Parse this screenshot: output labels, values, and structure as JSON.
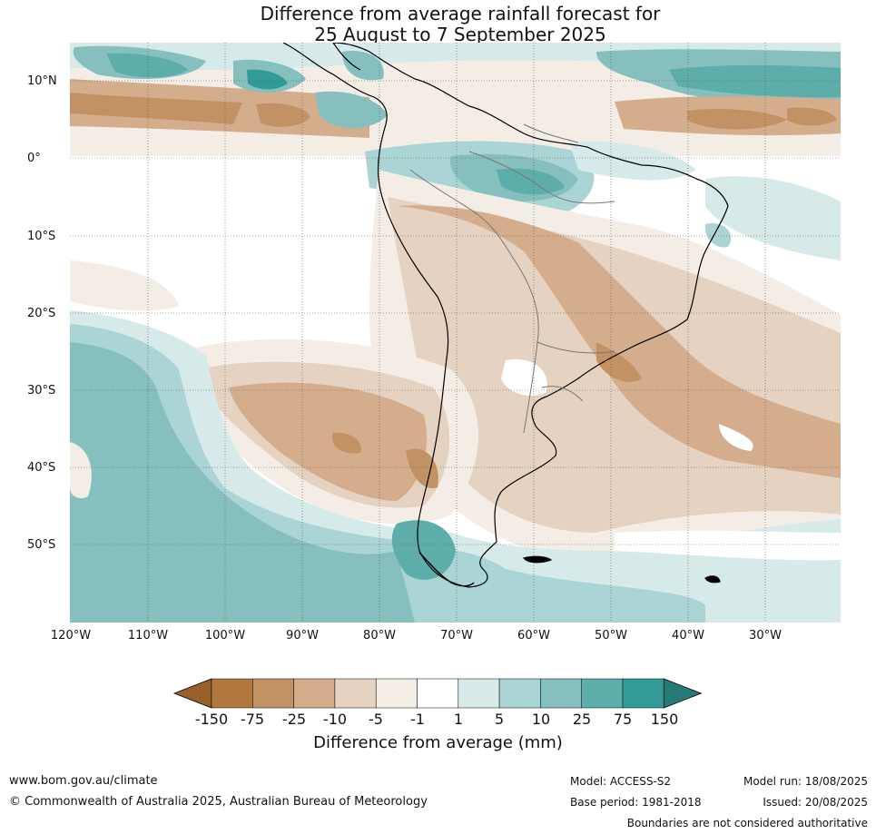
{
  "title": {
    "line1": "Difference from average rainfall forecast for",
    "line2": "25 August to 7 September 2025"
  },
  "map": {
    "lat_labels": [
      "10°N",
      "0°",
      "10°S",
      "20°S",
      "30°S",
      "40°S",
      "50°S"
    ],
    "lon_labels": [
      "120°W",
      "110°W",
      "100°W",
      "90°W",
      "80°W",
      "70°W",
      "60°W",
      "50°W",
      "40°W",
      "30°W"
    ]
  },
  "legend": {
    "ticks": [
      "-150",
      "-75",
      "-25",
      "-10",
      "-5",
      "-1",
      "1",
      "5",
      "10",
      "25",
      "75",
      "150"
    ],
    "colors": [
      "#99612a",
      "#b0783e",
      "#c29264",
      "#d4ae8c",
      "#e6d2c0",
      "#f3ede6",
      "#ffffff",
      "#d5eae9",
      "#aad5d4",
      "#85c0bf",
      "#5daeab",
      "#339b97",
      "#267b78"
    ],
    "label": "Difference from average (mm)"
  },
  "footer": {
    "website": "www.bom.gov.au/climate",
    "copyright": "© Commonwealth of Australia 2025, Australian Bureau of Meteorology",
    "model": "Model: ACCESS-S2",
    "base_period": "Base period: 1981-2018",
    "model_run": "Model run: 18/08/2025",
    "issued": "Issued: 20/08/2025",
    "disclaimer": "Boundaries are not considered authoritative"
  }
}
